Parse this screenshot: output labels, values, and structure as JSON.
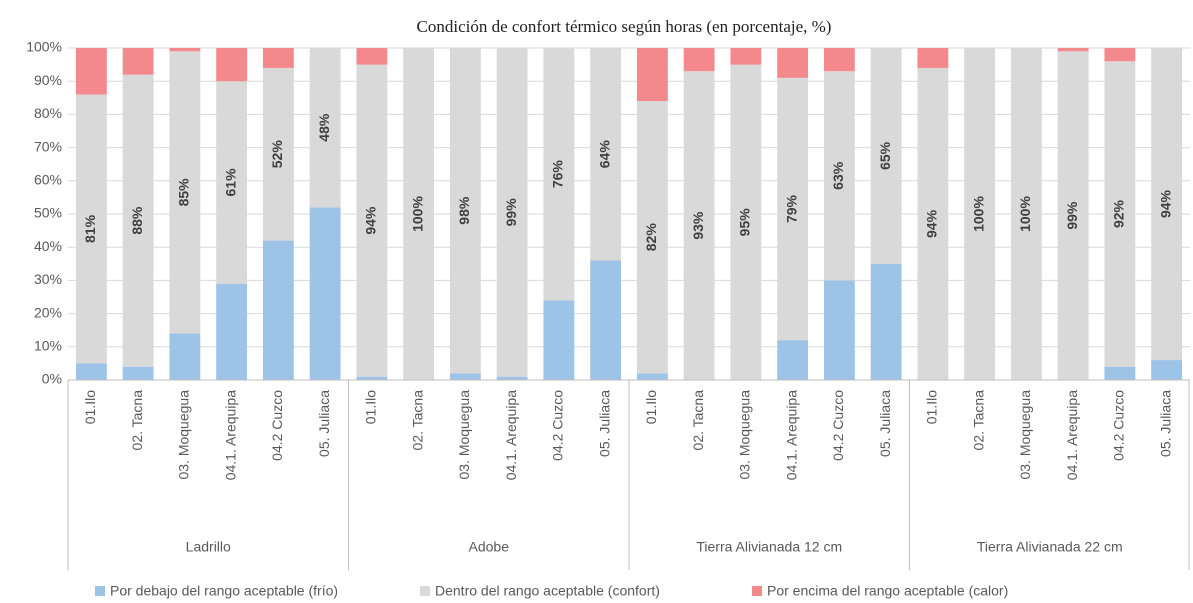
{
  "chart_data": {
    "type": "stacked-bar",
    "title": "Condición de confort térmico según horas (en porcentaje, %)",
    "groups": [
      {
        "label": "Ladrillo",
        "categories": [
          "01.Ilo",
          "02. Tacna",
          "03. Moquegua",
          "04.1. Arequipa",
          "04.2 Cuzco",
          "05. Juliaca"
        ]
      },
      {
        "label": "Adobe",
        "categories": [
          "01.Ilo",
          "02. Tacna",
          "03. Moquegua",
          "04.1. Arequipa",
          "04.2 Cuzco",
          "05. Juliaca"
        ]
      },
      {
        "label": "Tierra Alivianada 12 cm",
        "categories": [
          "01.Ilo",
          "02. Tacna",
          "03. Moquegua",
          "04.1. Arequipa",
          "04.2 Cuzco",
          "05. Juliaca"
        ]
      },
      {
        "label": "Tierra Alivianada 22 cm",
        "categories": [
          "01.Ilo",
          "02. Tacna",
          "03. Moquegua",
          "04.1. Arequipa",
          "04.2 Cuzco",
          "05. Juliaca"
        ]
      }
    ],
    "series": [
      {
        "name": "Por debajo del rango aceptable (frío)",
        "color": "#9dc3e6",
        "values": [
          5,
          4,
          14,
          29,
          42,
          52,
          1,
          0,
          2,
          1,
          24,
          36,
          2,
          0,
          0,
          12,
          30,
          35,
          0,
          0,
          0,
          0,
          4,
          6
        ]
      },
      {
        "name": "Dentro del rango aceptable (confort)",
        "color": "#d9d9d9",
        "values": [
          81,
          88,
          85,
          61,
          52,
          48,
          94,
          100,
          98,
          99,
          76,
          64,
          82,
          93,
          95,
          79,
          63,
          65,
          94,
          100,
          100,
          99,
          92,
          94
        ],
        "value_labels": [
          "81%",
          "88%",
          "85%",
          "61%",
          "52%",
          "48%",
          "94%",
          "100%",
          "98%",
          "99%",
          "76%",
          "64%",
          "82%",
          "93%",
          "95%",
          "79%",
          "63%",
          "65%",
          "94%",
          "100%",
          "100%",
          "99%",
          "92%",
          "94%"
        ]
      },
      {
        "name": "Por encima del rango aceptable (calor)",
        "color": "#f4898d",
        "values": [
          14,
          8,
          1,
          10,
          6,
          0,
          5,
          0,
          0,
          0,
          0,
          0,
          16,
          7,
          5,
          9,
          7,
          0,
          6,
          0,
          0,
          1,
          4,
          0
        ]
      }
    ],
    "ylim": [
      0,
      100
    ],
    "yticks": [
      {
        "value": 0,
        "label": "0%"
      },
      {
        "value": 10,
        "label": "10%"
      },
      {
        "value": 20,
        "label": "20%"
      },
      {
        "value": 30,
        "label": "30%"
      },
      {
        "value": 40,
        "label": "40%"
      },
      {
        "value": 50,
        "label": "50%"
      },
      {
        "value": 60,
        "label": "60%"
      },
      {
        "value": 70,
        "label": "70%"
      },
      {
        "value": 80,
        "label": "80%"
      },
      {
        "value": 90,
        "label": "90%"
      },
      {
        "value": 100,
        "label": "100%"
      }
    ],
    "grid": true
  }
}
